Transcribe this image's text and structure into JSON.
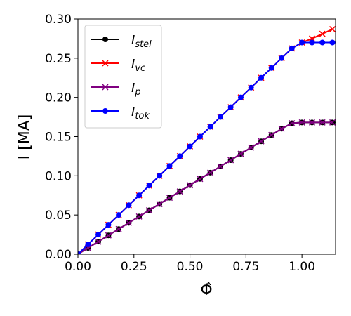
{
  "chart_data": {
    "type": "line",
    "xlabel": "Φ̂",
    "ylabel": "I [MA]",
    "xlim": [
      0.0,
      1.15
    ],
    "ylim": [
      0.0,
      0.3
    ],
    "xticks": [
      "0.00",
      "0.25",
      "0.50",
      "0.75",
      "1.00"
    ],
    "xtick_values": [
      0.0,
      0.25,
      0.5,
      0.75,
      1.0
    ],
    "yticks": [
      "0.00",
      "0.05",
      "0.10",
      "0.15",
      "0.20",
      "0.25",
      "0.30"
    ],
    "ytick_values": [
      0.0,
      0.05,
      0.1,
      0.15,
      0.2,
      0.25,
      0.3
    ],
    "legend_position": "upper-left",
    "grid": false,
    "x": [
      0.0,
      0.045,
      0.091,
      0.136,
      0.182,
      0.227,
      0.273,
      0.318,
      0.364,
      0.409,
      0.455,
      0.5,
      0.545,
      0.591,
      0.636,
      0.682,
      0.727,
      0.773,
      0.818,
      0.864,
      0.909,
      0.955,
      1.0,
      1.045,
      1.091,
      1.136
    ],
    "series": [
      {
        "name": "I",
        "sub": "stel",
        "color": "#000000",
        "marker": "circle",
        "values": [
          0.0,
          0.008,
          0.016,
          0.024,
          0.032,
          0.04,
          0.048,
          0.056,
          0.064,
          0.072,
          0.08,
          0.088,
          0.096,
          0.104,
          0.112,
          0.12,
          0.128,
          0.136,
          0.144,
          0.152,
          0.16,
          0.167,
          0.168,
          0.168,
          0.168,
          0.168
        ]
      },
      {
        "name": "I",
        "sub": "vc",
        "color": "#ff0000",
        "marker": "x",
        "values": [
          0.0,
          0.0125,
          0.025,
          0.0375,
          0.05,
          0.0625,
          0.075,
          0.0875,
          0.1,
          0.1125,
          0.125,
          0.1375,
          0.15,
          0.1625,
          0.175,
          0.1875,
          0.2,
          0.2125,
          0.225,
          0.2375,
          0.25,
          0.2625,
          0.27,
          0.275,
          0.281,
          0.287
        ]
      },
      {
        "name": "I",
        "sub": "p",
        "color": "#800080",
        "marker": "x",
        "values": [
          0.0,
          0.008,
          0.016,
          0.024,
          0.032,
          0.04,
          0.048,
          0.056,
          0.064,
          0.072,
          0.08,
          0.088,
          0.096,
          0.104,
          0.112,
          0.12,
          0.128,
          0.136,
          0.144,
          0.152,
          0.16,
          0.167,
          0.168,
          0.168,
          0.168,
          0.168
        ]
      },
      {
        "name": "I",
        "sub": "tok",
        "color": "#0000ff",
        "marker": "circle",
        "values": [
          0.0,
          0.0125,
          0.025,
          0.0375,
          0.05,
          0.0625,
          0.075,
          0.0875,
          0.1,
          0.1125,
          0.125,
          0.1375,
          0.15,
          0.1625,
          0.175,
          0.1875,
          0.2,
          0.2125,
          0.225,
          0.2375,
          0.25,
          0.2625,
          0.27,
          0.27,
          0.27,
          0.27
        ]
      }
    ]
  }
}
